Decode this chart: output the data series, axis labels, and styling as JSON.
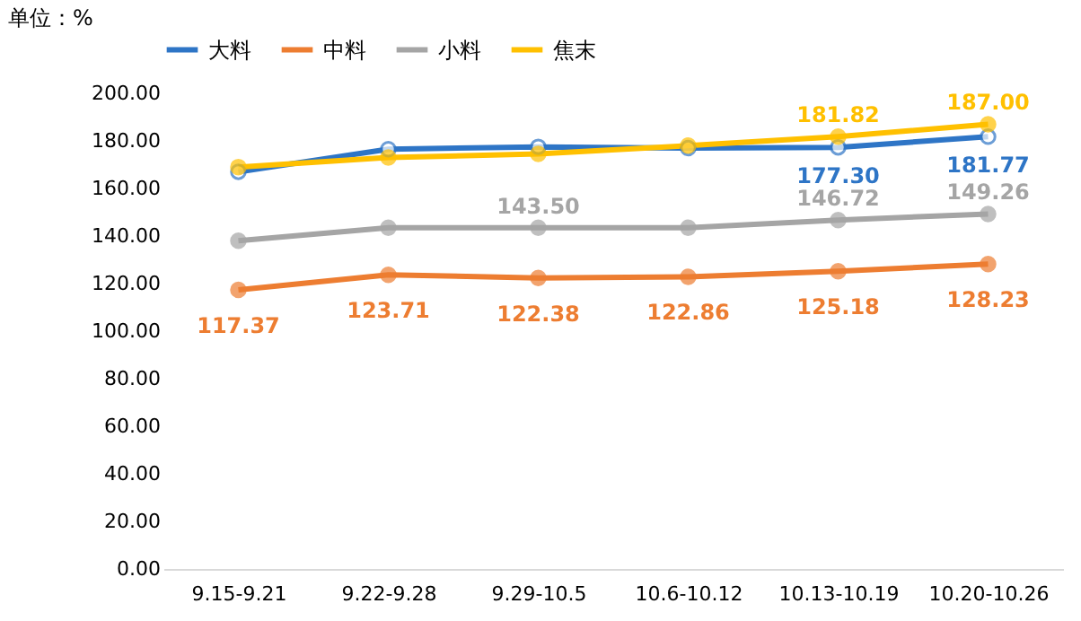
{
  "chart_data": {
    "type": "line",
    "ylabel": "单位：%",
    "categories": [
      "9.15-9.21",
      "9.22-9.28",
      "9.29-10.5",
      "10.6-10.12",
      "10.13-10.19",
      "10.20-10.26"
    ],
    "series": [
      {
        "name": "大料",
        "color": "#2e75c6",
        "values": [
          167,
          176.5,
          177.5,
          177,
          177.3,
          181.77
        ],
        "value_labels": [
          null,
          null,
          null,
          null,
          "177.30",
          "181.77"
        ]
      },
      {
        "name": "中料",
        "color": "#ed7d31",
        "values": [
          117.37,
          123.71,
          122.38,
          122.86,
          125.18,
          128.23
        ],
        "value_labels": [
          "117.37",
          "123.71",
          "122.38",
          "122.86",
          "125.18",
          "128.23"
        ]
      },
      {
        "name": "小料",
        "color": "#a5a5a5",
        "values": [
          138,
          143.5,
          143.5,
          143.5,
          146.72,
          149.26
        ],
        "value_labels": [
          null,
          null,
          "143.50",
          null,
          "146.72",
          "149.26"
        ]
      },
      {
        "name": "焦末",
        "color": "#ffc000",
        "values": [
          169,
          173,
          174.5,
          178,
          181.82,
          187.0
        ],
        "value_labels": [
          null,
          null,
          null,
          null,
          "181.82",
          "187.00"
        ]
      }
    ],
    "ylim": [
      0,
      200
    ],
    "yticks": [
      {
        "value": 0,
        "label": "0.00"
      },
      {
        "value": 20,
        "label": "20.00"
      },
      {
        "value": 40,
        "label": "40.00"
      },
      {
        "value": 60,
        "label": "60.00"
      },
      {
        "value": 80,
        "label": "80.00"
      },
      {
        "value": 100,
        "label": "100.00"
      },
      {
        "value": 120,
        "label": "120.00"
      },
      {
        "value": 140,
        "label": "140.00"
      },
      {
        "value": 160,
        "label": "160.00"
      },
      {
        "value": 180,
        "label": "180.00"
      },
      {
        "value": 200,
        "label": "200.00"
      }
    ],
    "grid": false,
    "legend": "top",
    "marker": "circle",
    "line_style": "solid"
  }
}
